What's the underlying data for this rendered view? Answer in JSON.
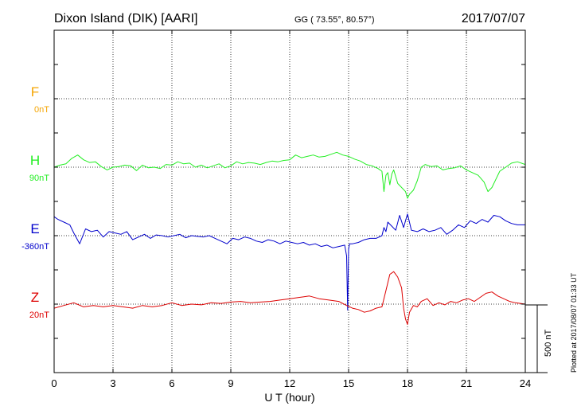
{
  "header": {
    "station": "Dixon Island (DIK)  [AARI]",
    "coords": "GG ( 73.55°,  80.57°)",
    "date": "2017/07/07"
  },
  "plotted_note": "Plotted at 2017/08/07 01:33 UT",
  "colors": {
    "F": "#f5a400",
    "H": "#22ee22",
    "E": "#0000cc",
    "Z": "#dd0000",
    "axis": "#000000"
  },
  "chart_data": {
    "type": "line",
    "title": "",
    "xlabel": "U T (hour)",
    "ylabel": "",
    "xlim": [
      0,
      24
    ],
    "xticks": [
      0,
      3,
      6,
      9,
      12,
      15,
      18,
      21,
      24
    ],
    "grid": true,
    "scale_bar_nT": 500,
    "scale_label": "500 nT",
    "unit": "nT",
    "channel_spacing_nT": 550,
    "series": [
      {
        "name": "F",
        "baseline_label": "0nT",
        "offset_index": 0,
        "x": [],
        "values": []
      },
      {
        "name": "H",
        "baseline_label": "90nT",
        "offset_index": 1,
        "x": [
          0,
          0.3,
          0.6,
          0.9,
          1.2,
          1.5,
          1.8,
          2.1,
          2.4,
          2.7,
          3.0,
          3.3,
          3.6,
          3.9,
          4.2,
          4.5,
          4.8,
          5.1,
          5.4,
          5.7,
          6.0,
          6.3,
          6.6,
          6.9,
          7.2,
          7.5,
          7.8,
          8.1,
          8.4,
          8.7,
          9.0,
          9.3,
          9.6,
          9.9,
          10.2,
          10.5,
          10.8,
          11.1,
          11.4,
          11.7,
          12.0,
          12.3,
          12.6,
          12.9,
          13.2,
          13.5,
          13.8,
          14.1,
          14.4,
          14.7,
          15.0,
          15.3,
          15.6,
          15.9,
          16.2,
          16.5,
          16.7,
          16.8,
          16.9,
          17.0,
          17.1,
          17.2,
          17.3,
          17.5,
          17.7,
          17.9,
          18.0,
          18.1,
          18.3,
          18.5,
          18.7,
          18.9,
          19.2,
          19.5,
          19.8,
          20.1,
          20.4,
          20.7,
          21.0,
          21.3,
          21.6,
          21.9,
          22.1,
          22.3,
          22.5,
          22.7,
          23.0,
          23.3,
          23.6,
          24.0
        ],
        "values": [
          0,
          15,
          25,
          65,
          90,
          55,
          35,
          40,
          5,
          -20,
          0,
          5,
          15,
          10,
          -25,
          15,
          -5,
          0,
          -10,
          20,
          15,
          40,
          25,
          30,
          0,
          15,
          -5,
          10,
          25,
          -5,
          10,
          40,
          25,
          35,
          30,
          20,
          35,
          45,
          40,
          50,
          55,
          90,
          70,
          80,
          90,
          75,
          80,
          95,
          110,
          90,
          80,
          60,
          45,
          20,
          10,
          -10,
          -30,
          -180,
          -60,
          -40,
          -130,
          -50,
          -20,
          -120,
          -150,
          -180,
          -230,
          -200,
          -170,
          -100,
          0,
          20,
          5,
          10,
          -20,
          -10,
          -5,
          10,
          -20,
          -40,
          -60,
          -110,
          -180,
          -150,
          -90,
          -30,
          0,
          30,
          40,
          20
        ]
      },
      {
        "name": "E",
        "baseline_label": "-360nT",
        "offset_index": 2,
        "x": [
          0,
          0.2,
          0.5,
          0.8,
          1.0,
          1.3,
          1.6,
          1.9,
          2.2,
          2.5,
          2.8,
          3.1,
          3.4,
          3.7,
          4.0,
          4.3,
          4.6,
          4.9,
          5.2,
          5.5,
          5.8,
          6.1,
          6.4,
          6.7,
          7.0,
          7.3,
          7.6,
          7.9,
          8.2,
          8.5,
          8.8,
          9.1,
          9.4,
          9.7,
          10.0,
          10.3,
          10.6,
          10.9,
          11.2,
          11.5,
          11.8,
          12.1,
          12.4,
          12.7,
          13.0,
          13.3,
          13.6,
          13.9,
          14.2,
          14.5,
          14.8,
          14.9,
          14.95,
          15.0,
          15.05,
          15.2,
          15.5,
          15.8,
          16.1,
          16.4,
          16.7,
          16.8,
          16.9,
          17.0,
          17.2,
          17.4,
          17.6,
          17.8,
          17.9,
          18.0,
          18.2,
          18.5,
          18.8,
          19.1,
          19.4,
          19.7,
          20.0,
          20.3,
          20.6,
          20.9,
          21.2,
          21.5,
          21.8,
          22.1,
          22.4,
          22.7,
          23.0,
          23.3,
          23.6,
          24.0
        ],
        "values": [
          140,
          120,
          100,
          80,
          20,
          -60,
          50,
          30,
          40,
          -10,
          30,
          20,
          10,
          30,
          -30,
          -10,
          10,
          -20,
          5,
          0,
          -10,
          0,
          10,
          -15,
          0,
          -5,
          -10,
          0,
          -20,
          -40,
          -60,
          -20,
          -30,
          -10,
          -20,
          -40,
          -50,
          -30,
          -40,
          -60,
          -40,
          -50,
          -60,
          -50,
          -70,
          -60,
          -80,
          -70,
          -90,
          -80,
          -70,
          -150,
          -550,
          -100,
          -60,
          -60,
          -50,
          -30,
          -20,
          -20,
          0,
          60,
          30,
          100,
          70,
          40,
          150,
          60,
          110,
          160,
          40,
          30,
          50,
          30,
          40,
          60,
          10,
          40,
          80,
          60,
          110,
          90,
          120,
          100,
          150,
          140,
          110,
          90,
          80,
          80
        ]
      },
      {
        "name": "Z",
        "baseline_label": "20nT",
        "offset_index": 3,
        "x": [
          0,
          0.5,
          1.0,
          1.5,
          2.0,
          2.5,
          3.0,
          3.5,
          4.0,
          4.5,
          5.0,
          5.5,
          6.0,
          6.5,
          7.0,
          7.5,
          8.0,
          8.5,
          9.0,
          9.5,
          10.0,
          10.5,
          11.0,
          11.5,
          12.0,
          12.5,
          13.0,
          13.5,
          14.0,
          14.5,
          14.9,
          15.2,
          15.5,
          15.8,
          16.1,
          16.4,
          16.7,
          16.9,
          17.1,
          17.3,
          17.5,
          17.7,
          17.8,
          17.9,
          18.0,
          18.1,
          18.3,
          18.5,
          18.7,
          19.0,
          19.3,
          19.6,
          19.9,
          20.2,
          20.5,
          20.8,
          21.1,
          21.4,
          21.7,
          22.0,
          22.3,
          22.6,
          22.9,
          23.2,
          23.5,
          24.0
        ],
        "values": [
          -30,
          -10,
          10,
          -20,
          -10,
          -20,
          -10,
          -20,
          -30,
          -10,
          -20,
          -10,
          10,
          -10,
          0,
          -5,
          10,
          5,
          15,
          20,
          10,
          15,
          20,
          30,
          40,
          50,
          60,
          40,
          30,
          20,
          -10,
          -30,
          -40,
          -60,
          -50,
          -30,
          -20,
          100,
          220,
          240,
          200,
          120,
          -30,
          -110,
          -150,
          -60,
          -10,
          -20,
          20,
          40,
          -10,
          10,
          -5,
          20,
          10,
          30,
          40,
          20,
          50,
          80,
          90,
          60,
          40,
          20,
          10,
          0
        ]
      }
    ]
  }
}
